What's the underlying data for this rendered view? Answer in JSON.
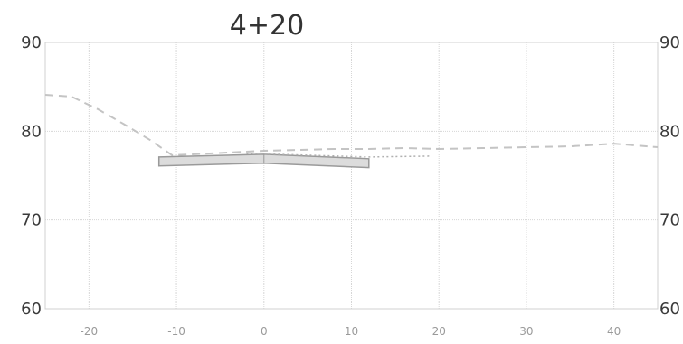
{
  "title": "4+20",
  "chart_data": {
    "type": "line",
    "title": "4+20",
    "xlabel": "",
    "ylabel": "",
    "xlim": [
      -25,
      45
    ],
    "ylim": [
      60,
      90
    ],
    "x_ticks": [
      "-20",
      "-10",
      "0",
      "10",
      "20",
      "30",
      "40"
    ],
    "x_tick_values": [
      -20,
      -10,
      0,
      10,
      20,
      30,
      40
    ],
    "y_ticks_left": [
      "90",
      "80",
      "70",
      "60"
    ],
    "y_ticks_right": [
      "90",
      "80",
      "70",
      "60"
    ],
    "y_tick_values": [
      90,
      80,
      70,
      60
    ],
    "grid": true,
    "series": [
      {
        "style": "dashed",
        "color": "#c4c4c4",
        "x": [
          -25,
          -22,
          -19,
          -16,
          -13,
          -10.5,
          -8,
          -4,
          0,
          4,
          8,
          12,
          16,
          20,
          25,
          30,
          35,
          40,
          45
        ],
        "y": [
          84.1,
          83.9,
          82.5,
          80.8,
          79.0,
          77.3,
          77.4,
          77.6,
          77.8,
          77.9,
          78.0,
          78.0,
          78.1,
          78.0,
          78.1,
          78.2,
          78.3,
          78.6,
          78.2
        ]
      },
      {
        "style": "solid-band",
        "color": "#9a9a9a",
        "fill": "#dcdcdc",
        "x": [
          -12,
          0,
          12
        ],
        "y_top": [
          77.1,
          77.4,
          76.9
        ],
        "y_bottom": [
          76.1,
          76.4,
          75.9
        ]
      },
      {
        "style": "dotted",
        "color": "#b0b0b0",
        "x": [
          -2,
          5,
          12,
          19
        ],
        "y": [
          77.5,
          77.3,
          77.1,
          77.2
        ]
      }
    ]
  }
}
